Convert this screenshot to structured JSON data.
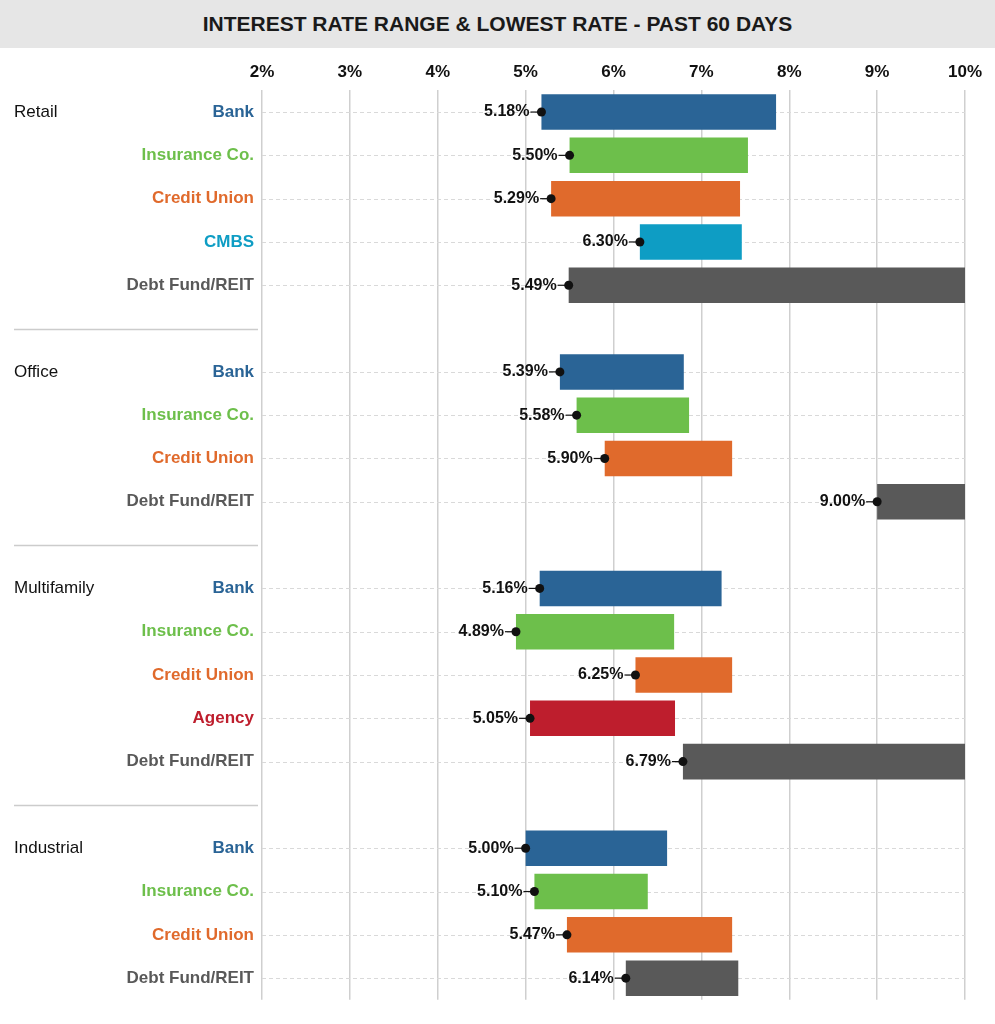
{
  "chart_data": {
    "type": "bar",
    "orientation": "horizontal",
    "title": "INTEREST RATE RANGE & LOWEST RATE - PAST 60 DAYS",
    "xlim": [
      2,
      10
    ],
    "xticks": [
      {
        "value": 2,
        "label": "2%"
      },
      {
        "value": 3,
        "label": "3%"
      },
      {
        "value": 4,
        "label": "4%"
      },
      {
        "value": 5,
        "label": "5%"
      },
      {
        "value": 6,
        "label": "6%"
      },
      {
        "value": 7,
        "label": "7%"
      },
      {
        "value": 8,
        "label": "8%"
      },
      {
        "value": 9,
        "label": "9%"
      },
      {
        "value": 10,
        "label": "10%"
      }
    ],
    "grid": true,
    "data_labels": true,
    "groups": [
      {
        "name": "Retail",
        "categories": [
          "Bank",
          "Insurance Co.",
          "Credit Union",
          "CMBS",
          "Debt Fund/REIT"
        ],
        "values": [
          [
            5.18,
            7.85
          ],
          [
            5.5,
            7.53
          ],
          [
            5.29,
            7.44
          ],
          [
            6.3,
            7.46
          ],
          [
            5.49,
            10
          ]
        ],
        "value_labels": [
          "5.18%",
          "5.50%",
          "5.29%",
          "6.30%",
          "5.49%"
        ],
        "colors": [
          "#2a6496",
          "#6dbf4b",
          "#e06a2c",
          "#0e9dc4",
          "#595959"
        ]
      },
      {
        "name": "Office",
        "categories": [
          "Bank",
          "Insurance Co.",
          "Credit Union",
          "Debt Fund/REIT"
        ],
        "values": [
          [
            5.39,
            6.8
          ],
          [
            5.58,
            6.86
          ],
          [
            5.9,
            7.35
          ],
          [
            9,
            10
          ]
        ],
        "value_labels": [
          "5.39%",
          "5.58%",
          "5.90%",
          "9.00%"
        ],
        "colors": [
          "#2a6496",
          "#6dbf4b",
          "#e06a2c",
          "#595959"
        ]
      },
      {
        "name": "Multifamily",
        "categories": [
          "Bank",
          "Insurance Co.",
          "Credit Union",
          "Agency",
          "Debt Fund/REIT"
        ],
        "values": [
          [
            5.16,
            7.23
          ],
          [
            4.89,
            6.69
          ],
          [
            6.25,
            7.35
          ],
          [
            5.05,
            6.7
          ],
          [
            6.79,
            10
          ]
        ],
        "value_labels": [
          "5.16%",
          "4.89%",
          "6.25%",
          "5.05%",
          "6.79%"
        ],
        "colors": [
          "#2a6496",
          "#6dbf4b",
          "#e06a2c",
          "#be1e2d",
          "#595959"
        ]
      },
      {
        "name": "Industrial",
        "categories": [
          "Bank",
          "Insurance Co.",
          "Credit Union",
          "Debt Fund/REIT"
        ],
        "values": [
          [
            5,
            6.61
          ],
          [
            5.1,
            6.39
          ],
          [
            5.47,
            7.35
          ],
          [
            6.14,
            7.42
          ]
        ],
        "value_labels": [
          "5.00%",
          "5.10%",
          "5.47%",
          "6.14%"
        ],
        "colors": [
          "#2a6496",
          "#6dbf4b",
          "#e06a2c",
          "#595959"
        ]
      }
    ]
  }
}
